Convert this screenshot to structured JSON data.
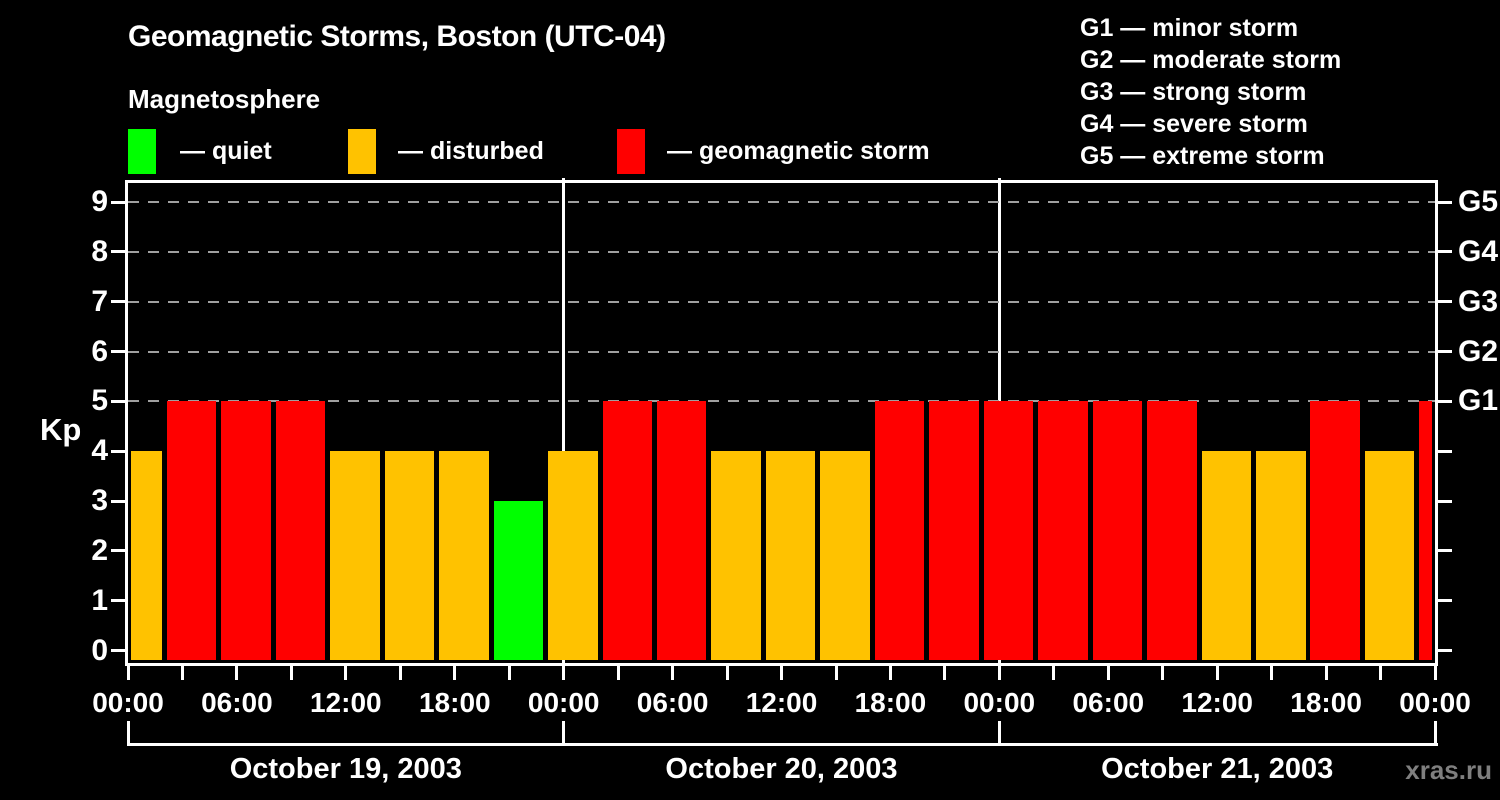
{
  "header": {
    "title": "Geomagnetic Storms, Boston (UTC-04)",
    "subtitle": "Magnetosphere"
  },
  "legend": {
    "items": [
      {
        "label": "— quiet",
        "status": "quiet",
        "color": "#00ff00"
      },
      {
        "label": "— disturbed",
        "status": "disturbed",
        "color": "#ffc200"
      },
      {
        "label": "— geomagnetic storm",
        "status": "storm",
        "color": "#ff0000"
      }
    ]
  },
  "g_legend": {
    "lines": [
      "G1 — minor storm",
      "G2 — moderate storm",
      "G3 — strong storm",
      "G4 — severe storm",
      "G5 — extreme storm"
    ]
  },
  "watermark": "xras.ru",
  "chart_data": {
    "type": "bar",
    "title": "Geomagnetic Storms, Boston (UTC-04)",
    "subtitle": "Magnetosphere",
    "ylabel": "Kp",
    "ylim": [
      0,
      9.4
    ],
    "y_ticks": [
      0,
      1,
      2,
      3,
      4,
      5,
      6,
      7,
      8,
      9
    ],
    "grid_kp_levels": [
      5,
      6,
      7,
      8,
      9
    ],
    "right_axis_labels": [
      {
        "label": "G1",
        "kp": 5
      },
      {
        "label": "G2",
        "kp": 6
      },
      {
        "label": "G3",
        "kp": 7
      },
      {
        "label": "G4",
        "kp": 8
      },
      {
        "label": "G5",
        "kp": 9
      }
    ],
    "x_domain_hours": [
      0,
      72
    ],
    "x_tick_interval_hours": 3,
    "x_label_interval_hours": 6,
    "x_labels": [
      "00:00",
      "06:00",
      "12:00",
      "18:00",
      "00:00",
      "06:00",
      "12:00",
      "18:00",
      "00:00",
      "06:00",
      "12:00",
      "18:00",
      "00:00"
    ],
    "day_boundary_hours": [
      24,
      48
    ],
    "days": [
      {
        "label": "October 19, 2003",
        "start_hour": 0,
        "end_hour": 24
      },
      {
        "label": "October 20, 2003",
        "start_hour": 24,
        "end_hour": 48
      },
      {
        "label": "October 21, 2003",
        "start_hour": 48,
        "end_hour": 72
      }
    ],
    "colors": {
      "quiet": "#00ff00",
      "disturbed": "#ffc200",
      "storm": "#ff0000"
    },
    "bars": [
      {
        "start_hour": 0,
        "end_hour": 2,
        "kp": 4,
        "status": "disturbed"
      },
      {
        "start_hour": 2,
        "end_hour": 5,
        "kp": 5,
        "status": "storm"
      },
      {
        "start_hour": 5,
        "end_hour": 8,
        "kp": 5,
        "status": "storm"
      },
      {
        "start_hour": 8,
        "end_hour": 11,
        "kp": 5,
        "status": "storm"
      },
      {
        "start_hour": 11,
        "end_hour": 14,
        "kp": 4,
        "status": "disturbed"
      },
      {
        "start_hour": 14,
        "end_hour": 17,
        "kp": 4,
        "status": "disturbed"
      },
      {
        "start_hour": 17,
        "end_hour": 20,
        "kp": 4,
        "status": "disturbed"
      },
      {
        "start_hour": 20,
        "end_hour": 23,
        "kp": 3,
        "status": "quiet"
      },
      {
        "start_hour": 23,
        "end_hour": 26,
        "kp": 4,
        "status": "disturbed"
      },
      {
        "start_hour": 26,
        "end_hour": 29,
        "kp": 5,
        "status": "storm"
      },
      {
        "start_hour": 29,
        "end_hour": 32,
        "kp": 5,
        "status": "storm"
      },
      {
        "start_hour": 32,
        "end_hour": 35,
        "kp": 4,
        "status": "disturbed"
      },
      {
        "start_hour": 35,
        "end_hour": 38,
        "kp": 4,
        "status": "disturbed"
      },
      {
        "start_hour": 38,
        "end_hour": 41,
        "kp": 4,
        "status": "disturbed"
      },
      {
        "start_hour": 41,
        "end_hour": 44,
        "kp": 5,
        "status": "storm"
      },
      {
        "start_hour": 44,
        "end_hour": 47,
        "kp": 5,
        "status": "storm"
      },
      {
        "start_hour": 47,
        "end_hour": 50,
        "kp": 5,
        "status": "storm"
      },
      {
        "start_hour": 50,
        "end_hour": 53,
        "kp": 5,
        "status": "storm"
      },
      {
        "start_hour": 53,
        "end_hour": 56,
        "kp": 5,
        "status": "storm"
      },
      {
        "start_hour": 56,
        "end_hour": 59,
        "kp": 5,
        "status": "storm"
      },
      {
        "start_hour": 59,
        "end_hour": 62,
        "kp": 4,
        "status": "disturbed"
      },
      {
        "start_hour": 62,
        "end_hour": 65,
        "kp": 4,
        "status": "disturbed"
      },
      {
        "start_hour": 65,
        "end_hour": 68,
        "kp": 5,
        "status": "storm"
      },
      {
        "start_hour": 68,
        "end_hour": 71,
        "kp": 4,
        "status": "disturbed"
      },
      {
        "start_hour": 71,
        "end_hour": 72,
        "kp": 5,
        "status": "storm"
      }
    ]
  }
}
